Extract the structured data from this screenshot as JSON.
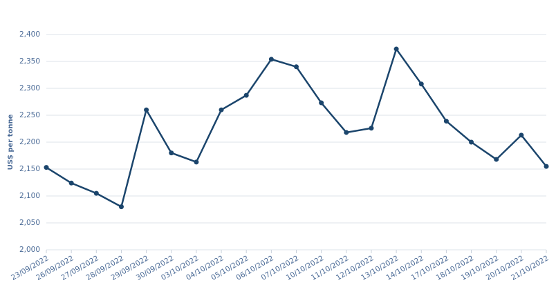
{
  "chart_data": {
    "type": "line",
    "y_label": "US$ per tonne",
    "categories": [
      "23/09/2022",
      "26/09/2022",
      "27/09/2022",
      "28/09/2022",
      "29/09/2022",
      "30/09/2022",
      "03/10/2022",
      "04/10/2022",
      "05/10/2022",
      "06/10/2022",
      "07/10/2022",
      "10/10/2022",
      "11/10/2022",
      "12/10/2022",
      "13/10/2022",
      "14/10/2022",
      "17/10/2022",
      "18/10/2022",
      "19/10/2022",
      "20/10/2022",
      "21/10/2022"
    ],
    "values": [
      2153,
      2124,
      2105,
      2080,
      2260,
      2180,
      2163,
      2260,
      2287,
      2354,
      2340,
      2273,
      2218,
      2226,
      2373,
      2308,
      2239,
      2200,
      2168,
      2213,
      2155
    ],
    "color": "#1b456c",
    "ylim": [
      2000,
      2400
    ],
    "yticks": [
      {
        "value": 2000,
        "label": "2,000"
      },
      {
        "value": 2050,
        "label": "2,050"
      },
      {
        "value": 2100,
        "label": "2,100"
      },
      {
        "value": 2150,
        "label": "2,150"
      },
      {
        "value": 2200,
        "label": "2,200"
      },
      {
        "value": 2250,
        "label": "2,250"
      },
      {
        "value": 2300,
        "label": "2,300"
      },
      {
        "value": 2350,
        "label": "2,350"
      },
      {
        "value": 2400,
        "label": "2,400"
      }
    ],
    "grid": true
  }
}
